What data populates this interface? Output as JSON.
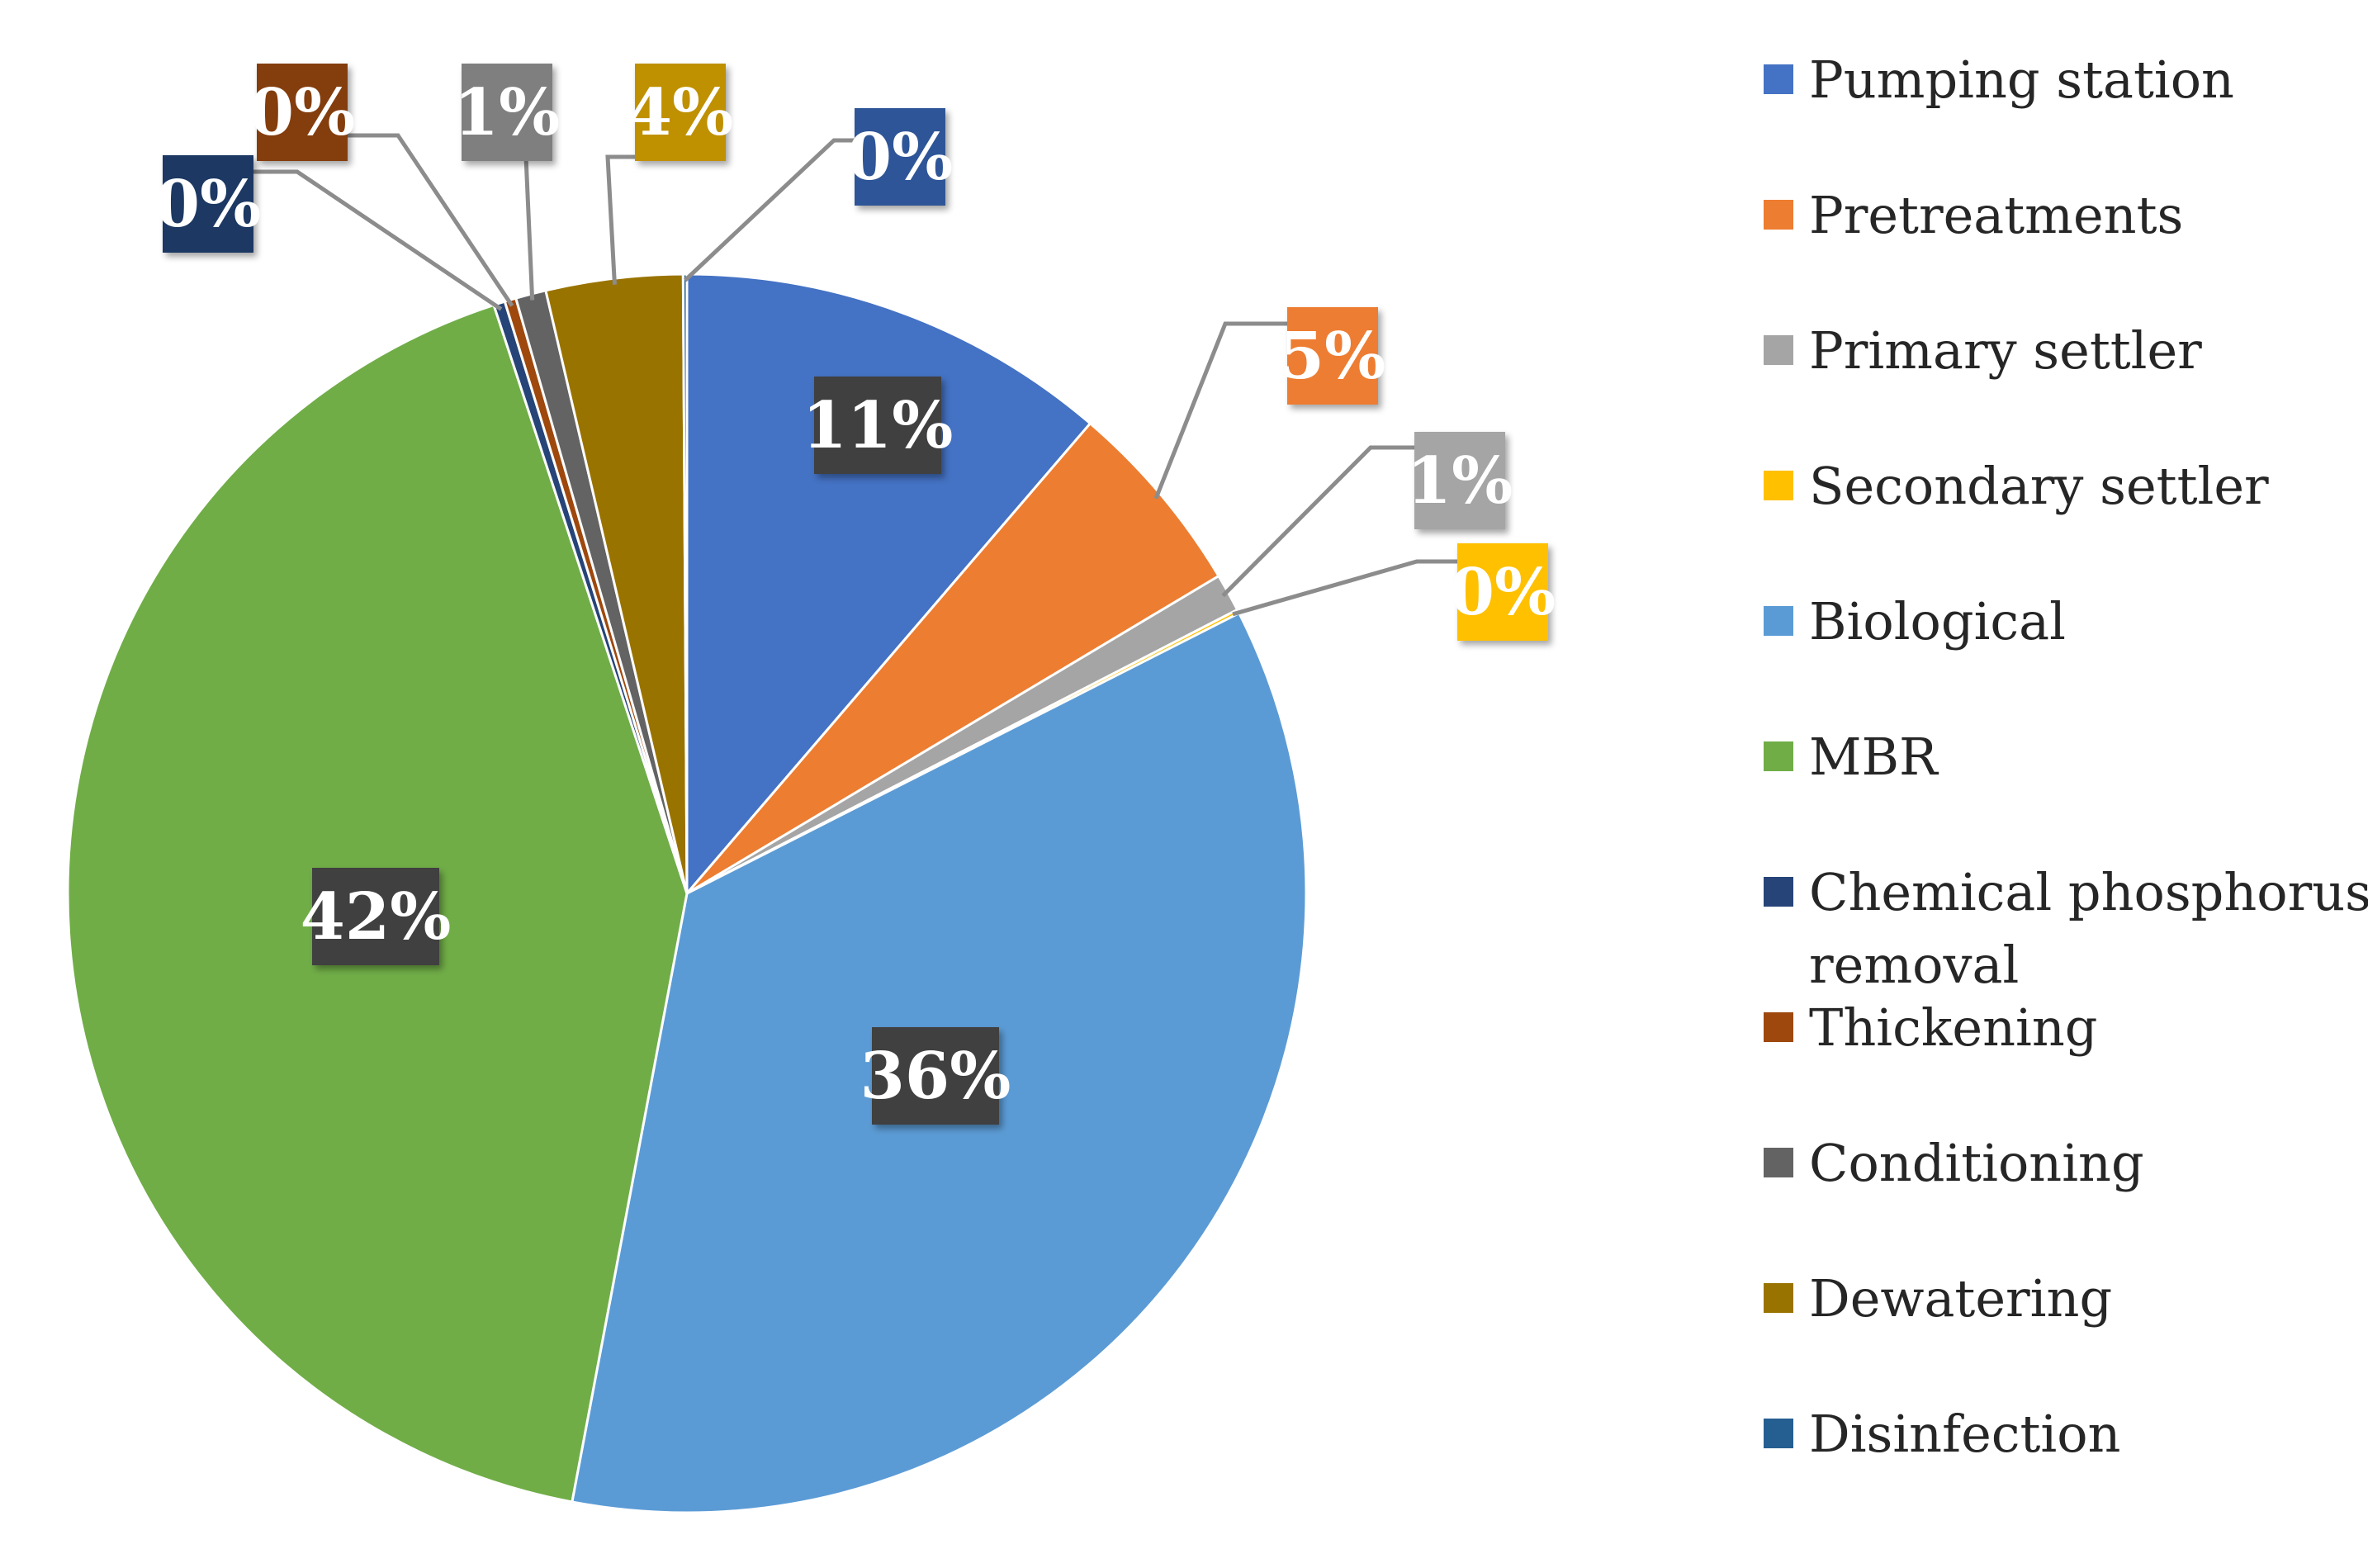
{
  "chart_data": {
    "type": "pie",
    "title": "",
    "label_format": "percent",
    "legend_position": "right",
    "start_angle_deg": 0,
    "direction": "clockwise",
    "slices": [
      {
        "name": "Pumping station",
        "value": 11.4,
        "label": "11%",
        "color": "#4472c4",
        "label_color": "#404040"
      },
      {
        "name": "Pretreatments",
        "value": 5.2,
        "label": "5%",
        "color": "#ed7d31",
        "label_color": "#ed7d31"
      },
      {
        "name": "Primary settler",
        "value": 1.0,
        "label": "1%",
        "color": "#a5a5a5",
        "label_color": "#a5a5a5"
      },
      {
        "name": "Secondary settler",
        "value": 0.1,
        "label": "0%",
        "color": "#ffc000",
        "label_color": "#ffc000"
      },
      {
        "name": "Biological",
        "value": 35.8,
        "label": "36%",
        "color": "#5b9bd5",
        "label_color": "#404040"
      },
      {
        "name": "MBR",
        "value": 42.4,
        "label": "42%",
        "color": "#70ad47",
        "label_color": "#404040"
      },
      {
        "name": "Chemical phosphorus removal",
        "value": 0.3,
        "label": "0%",
        "color": "#264478",
        "label_color": "#1f3864"
      },
      {
        "name": "Thickening",
        "value": 0.3,
        "label": "0%",
        "color": "#9e480e",
        "label_color": "#843c0c"
      },
      {
        "name": "Conditioning",
        "value": 0.8,
        "label": "1%",
        "color": "#636363",
        "label_color": "#7f7f7f"
      },
      {
        "name": "Dewatering",
        "value": 3.6,
        "label": "4%",
        "color": "#997300",
        "label_color": "#bf9000"
      },
      {
        "name": "Disinfection",
        "value": 0.1,
        "label": "0%",
        "color": "#255e91",
        "label_color": "#2f5597"
      }
    ]
  }
}
